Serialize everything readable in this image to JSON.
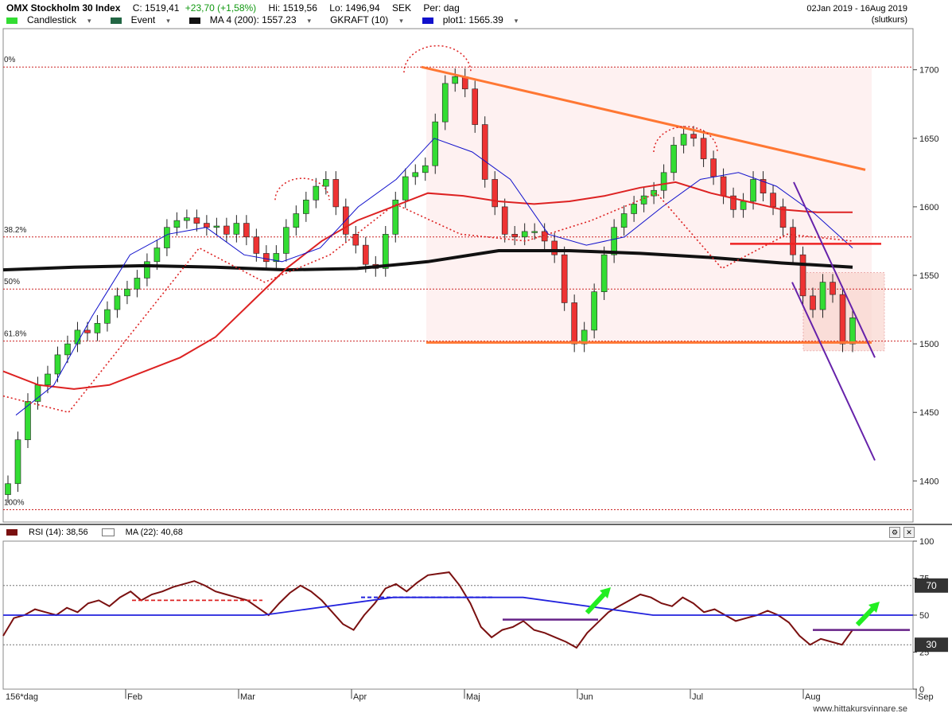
{
  "header": {
    "title": "OMX Stockholm 30 Index",
    "close": "C: 1519,41",
    "change": "+23,70 (+1,58%)",
    "high": "Hi: 1519,56",
    "low": "Lo: 1496,94",
    "currency": "SEK",
    "period": "Per: dag",
    "date_range": "02Jan 2019 - 16Aug 2019",
    "price_type": "(slutkurs)"
  },
  "legend": [
    {
      "label": "Candlestick",
      "color": "#33dd33"
    },
    {
      "label": "Event",
      "color": "#226644"
    },
    {
      "label": "MA 4 (200): 1557.23",
      "color": "#111111"
    },
    {
      "label": "GKRAFT (10)",
      "color": ""
    },
    {
      "label": "plot1: 1565.39",
      "color": "#1111cc"
    }
  ],
  "rsi_header": {
    "rsi_label": "RSI (14): 38,56",
    "rsi_color": "#7a1010",
    "ma_label": "MA (22): 40,68"
  },
  "footer": {
    "period_note": "156*dag",
    "watermark": "www.hittakursvinnare.se"
  },
  "chart_data": [
    {
      "type": "candlestick",
      "ylim": [
        1370,
        1730
      ],
      "y_ticks": [
        "1400",
        "1450",
        "1500",
        "1550",
        "1600",
        "1650",
        "1700"
      ],
      "x_ticks": [
        "Feb",
        "Mar",
        "Apr",
        "Maj",
        "Jun",
        "Jul",
        "Aug",
        "Sep"
      ],
      "grid": false,
      "fib_levels": [
        {
          "label": "0%",
          "value": 1702
        },
        {
          "label": "38.2%",
          "value": 1578
        },
        {
          "label": "50%",
          "value": 1540
        },
        {
          "label": "61.8%",
          "value": 1502
        },
        {
          "label": "100%",
          "value": 1379
        }
      ],
      "series": [
        {
          "type": "line",
          "color": "#111111",
          "values": [
            1554,
            1556,
            1557,
            1556,
            1554,
            1555,
            1560,
            1568,
            1568,
            1566,
            1563,
            1559,
            1556
          ]
        },
        {
          "type": "line",
          "color": "#dd2222",
          "values": [
            1480,
            1470,
            1467,
            1470,
            1480,
            1490,
            1505,
            1530,
            1555,
            1575,
            1590,
            1600,
            1610,
            1608,
            1604,
            1602,
            1604,
            1608,
            1614,
            1618,
            1610,
            1604,
            1598,
            1596,
            1596
          ]
        },
        {
          "type": "line",
          "color": "#1111cc",
          "values": [
            1448,
            1470,
            1520,
            1565,
            1580,
            1585,
            1565,
            1560,
            1570,
            1600,
            1620,
            1650,
            1640,
            1620,
            1580,
            1572,
            1578,
            1600,
            1620,
            1625,
            1615,
            1595,
            1570
          ]
        },
        {
          "type": "line",
          "color": "#dd2222",
          "values": [
            1462,
            1450,
            1510,
            1570,
            1545,
            1565,
            1602,
            1580,
            1575,
            1590,
            1610,
            1555,
            1580,
            1575
          ]
        }
      ],
      "candles_close": [
        1398,
        1430,
        1458,
        1470,
        1478,
        1492,
        1500,
        1510,
        1508,
        1515,
        1525,
        1535,
        1540,
        1548,
        1560,
        1570,
        1585,
        1590,
        1592,
        1588,
        1585,
        1586,
        1580,
        1588,
        1578,
        1566,
        1560,
        1566,
        1585,
        1595,
        1605,
        1615,
        1620,
        1600,
        1580,
        1572,
        1558,
        1555,
        1580,
        1605,
        1622,
        1625,
        1630,
        1662,
        1690,
        1695,
        1686,
        1660,
        1620,
        1600,
        1580,
        1578,
        1582,
        1582,
        1575,
        1565,
        1530,
        1500,
        1510,
        1538,
        1565,
        1585,
        1595,
        1602,
        1608,
        1612,
        1625,
        1645,
        1653,
        1650,
        1635,
        1622,
        1608,
        1598,
        1604,
        1620,
        1610,
        1600,
        1585,
        1565,
        1535,
        1525,
        1545,
        1536,
        1500,
        1519
      ]
    },
    {
      "type": "line",
      "ylim": [
        0,
        100
      ],
      "y_ticks": [
        "0",
        "25",
        "50",
        "75",
        "100"
      ],
      "markers": [
        "30",
        "70"
      ],
      "series": [
        {
          "color": "#7a1010",
          "values": [
            36,
            48,
            50,
            54,
            52,
            50,
            55,
            52,
            58,
            60,
            56,
            62,
            66,
            60,
            64,
            66,
            69,
            71,
            73,
            70,
            66,
            64,
            62,
            60,
            55,
            50,
            58,
            65,
            70,
            66,
            60,
            52,
            44,
            40,
            50,
            58,
            68,
            71,
            66,
            72,
            77,
            78,
            79,
            70,
            58,
            42,
            35,
            40,
            42,
            46,
            40,
            38,
            35,
            32,
            28,
            38,
            45,
            52,
            56,
            60,
            64,
            62,
            58,
            56,
            62,
            58,
            52,
            54,
            50,
            46,
            48,
            50,
            53,
            50,
            45,
            36,
            30,
            34,
            32,
            30,
            40
          ]
        },
        {
          "color": "#2222dd",
          "values": [
            50,
            50,
            50,
            62,
            62,
            50,
            50,
            50
          ]
        },
        {
          "color": "#dd2222",
          "values": [
            60,
            60
          ]
        }
      ]
    }
  ]
}
